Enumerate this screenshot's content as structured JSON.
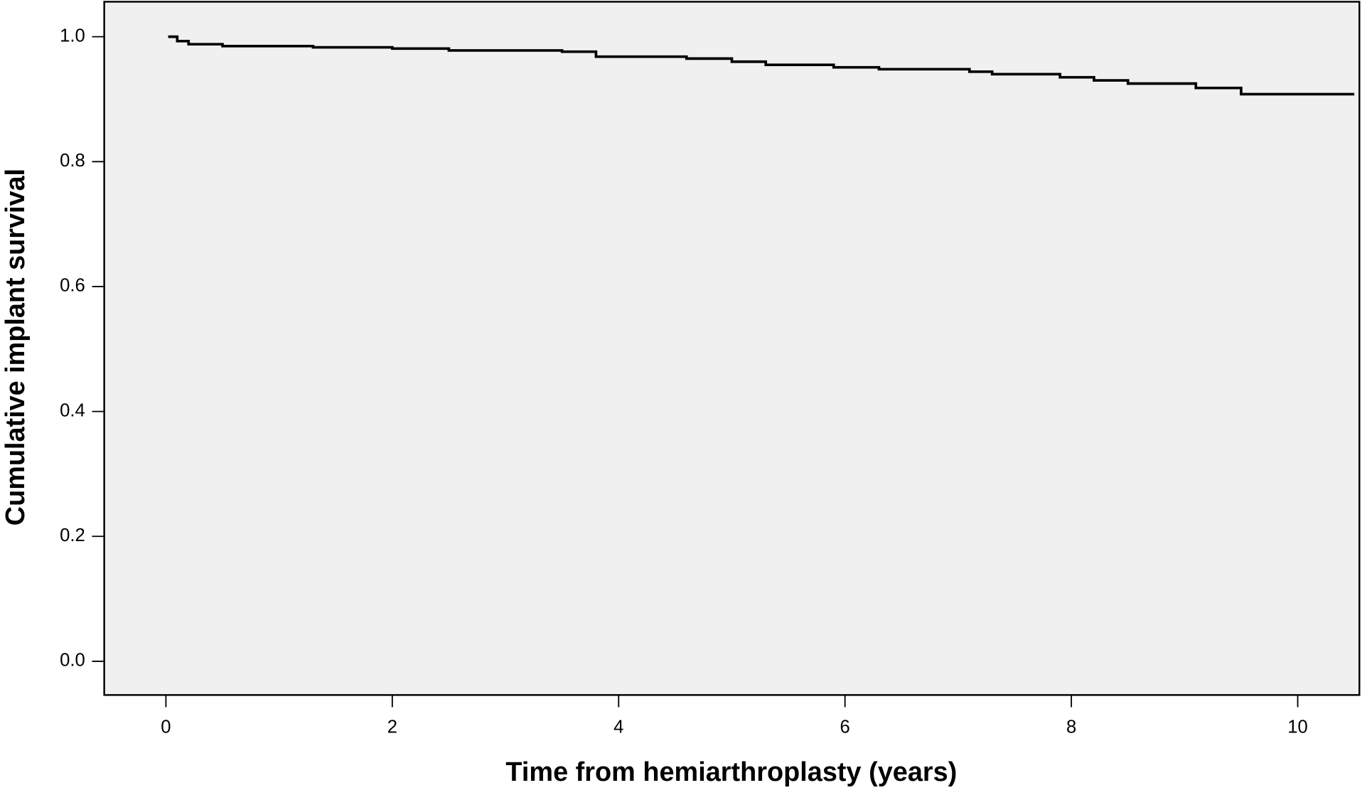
{
  "chart_data": {
    "type": "step",
    "x_label": "Time from hemiarthroplasty (years)",
    "y_label": "Cumulative implant survival",
    "x": [
      0.02,
      0.1,
      0.2,
      0.5,
      1.3,
      2.0,
      2.5,
      3.5,
      3.8,
      4.6,
      5.0,
      5.3,
      5.9,
      6.3,
      7.1,
      7.3,
      7.9,
      8.2,
      8.5,
      9.1,
      9.5,
      10.5
    ],
    "values": [
      1.0,
      0.993,
      0.988,
      0.985,
      0.983,
      0.981,
      0.978,
      0.976,
      0.968,
      0.965,
      0.96,
      0.955,
      0.951,
      0.948,
      0.944,
      0.94,
      0.935,
      0.93,
      0.925,
      0.918,
      0.908,
      0.908
    ],
    "color": "#000000",
    "background": "#f0f0f0",
    "xlim": [
      -0.545,
      10.545
    ],
    "ylim": [
      -0.054,
      1.056
    ],
    "xticks": [
      0,
      2,
      4,
      6,
      8,
      10
    ],
    "yticks": [
      {
        "value": 0,
        "label": "0.0"
      },
      {
        "value": 0.2,
        "label": "0.2"
      },
      {
        "value": 0.4,
        "label": "0.4"
      },
      {
        "value": 0.6,
        "label": "0.6"
      },
      {
        "value": 0.8,
        "label": "0.8"
      },
      {
        "value": 1,
        "label": "1.0"
      }
    ]
  }
}
